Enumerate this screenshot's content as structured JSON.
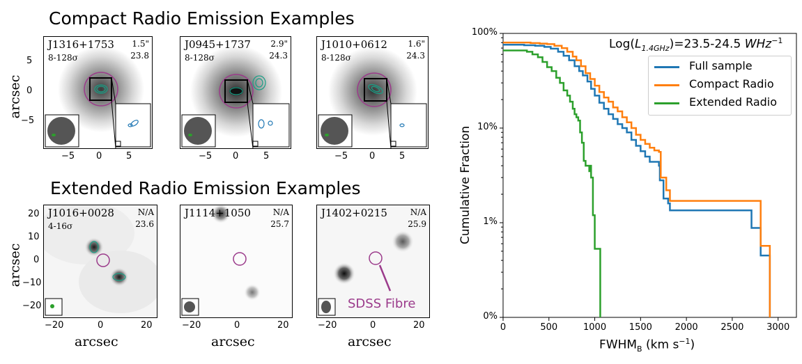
{
  "compact_section": {
    "title": "Compact Radio Emission Examples",
    "y_label": "arcsec",
    "panels": [
      {
        "name": "J1316+1753",
        "sigma": "8-128σ",
        "size": "1.5\"",
        "lum": "23.8"
      },
      {
        "name": "J0945+1737",
        "sigma": "8-128σ",
        "size": "2.9\"",
        "lum": "24.3"
      },
      {
        "name": "J1010+0612",
        "sigma": "8-128σ",
        "size": "1.6\"",
        "lum": "24.3"
      }
    ],
    "y_ticks": [
      "5",
      "0",
      "−5"
    ],
    "x_ticks": [
      "−5",
      "0",
      "5"
    ]
  },
  "extended_section": {
    "title": "Extended Radio Emission Examples",
    "y_label": "arcsec",
    "x_label": "arcsec",
    "panels": [
      {
        "name": "J1016+0028",
        "sigma": "4-16σ",
        "size": "N/A",
        "lum": "23.6"
      },
      {
        "name": "J1114+1050",
        "sigma": "",
        "size": "N/A",
        "lum": "25.7"
      },
      {
        "name": "J1402+0215",
        "sigma": "",
        "size": "N/A",
        "lum": "25.9"
      }
    ],
    "y_ticks": [
      "20",
      "10",
      "0",
      "−10",
      "−20"
    ],
    "x_ticks": [
      "−20",
      "0",
      "20"
    ],
    "fibre_label": "SDSS Fibre"
  },
  "colors": {
    "full": "#1f77b4",
    "compact": "#ff7f0e",
    "extended": "#2ca02c",
    "fibre": "#9b3b8b",
    "contour": "#1a9f86"
  },
  "chart_data": {
    "type": "line",
    "title": "Log(L1.4GHz)=23.5-24.5 WHz⁻¹",
    "title_parts": {
      "pre": "Log(",
      "L": "L",
      "sub": "1.4GHz",
      "mid": ")=23.5-24.5 ",
      "unit": "WHz",
      "sup": "−1"
    },
    "xlabel": "FWHM",
    "xlabel_sub": "B",
    "xlabel_unit": " (km s",
    "xlabel_sup": "−1",
    "xlabel_end": ")",
    "ylabel": "Cumulative Fraction",
    "xlim": [
      0,
      3200
    ],
    "ylim_log": [
      -3,
      0
    ],
    "x_ticks": [
      0,
      500,
      1000,
      1500,
      2000,
      2500,
      3000
    ],
    "y_ticks": [
      {
        "value": 1.0,
        "label": "100%"
      },
      {
        "value": 0.1,
        "label": "10%"
      },
      {
        "value": 0.01,
        "label": "1%"
      },
      {
        "value": 0.001,
        "label": "0%"
      }
    ],
    "legend_position": "upper-right",
    "series": [
      {
        "name": "Full sample",
        "color": "#1f77b4",
        "points": [
          [
            0,
            0.76
          ],
          [
            150,
            0.76
          ],
          [
            230,
            0.75
          ],
          [
            350,
            0.74
          ],
          [
            450,
            0.72
          ],
          [
            520,
            0.69
          ],
          [
            600,
            0.64
          ],
          [
            660,
            0.58
          ],
          [
            720,
            0.52
          ],
          [
            780,
            0.45
          ],
          [
            830,
            0.4
          ],
          [
            870,
            0.36
          ],
          [
            920,
            0.31
          ],
          [
            960,
            0.26
          ],
          [
            1000,
            0.22
          ],
          [
            1050,
            0.185
          ],
          [
            1100,
            0.16
          ],
          [
            1150,
            0.14
          ],
          [
            1200,
            0.125
          ],
          [
            1250,
            0.11
          ],
          [
            1300,
            0.1
          ],
          [
            1350,
            0.09
          ],
          [
            1400,
            0.075
          ],
          [
            1450,
            0.065
          ],
          [
            1500,
            0.057
          ],
          [
            1550,
            0.05
          ],
          [
            1600,
            0.044
          ],
          [
            1700,
            0.04
          ],
          [
            1710,
            0.028
          ],
          [
            1750,
            0.018
          ],
          [
            1800,
            0.016
          ],
          [
            1820,
            0.0135
          ],
          [
            2700,
            0.0135
          ],
          [
            2710,
            0.0088
          ],
          [
            2800,
            0.0088
          ],
          [
            2810,
            0.0045
          ],
          [
            2900,
            0.0045
          ],
          [
            2910,
            0.001
          ]
        ]
      },
      {
        "name": "Compact Radio",
        "color": "#ff7f0e",
        "points": [
          [
            0,
            0.8
          ],
          [
            200,
            0.8
          ],
          [
            300,
            0.79
          ],
          [
            400,
            0.78
          ],
          [
            480,
            0.77
          ],
          [
            560,
            0.74
          ],
          [
            640,
            0.7
          ],
          [
            700,
            0.64
          ],
          [
            760,
            0.57
          ],
          [
            800,
            0.52
          ],
          [
            850,
            0.45
          ],
          [
            900,
            0.38
          ],
          [
            950,
            0.33
          ],
          [
            1000,
            0.28
          ],
          [
            1050,
            0.24
          ],
          [
            1100,
            0.21
          ],
          [
            1150,
            0.19
          ],
          [
            1200,
            0.165
          ],
          [
            1250,
            0.15
          ],
          [
            1300,
            0.13
          ],
          [
            1350,
            0.115
          ],
          [
            1400,
            0.1
          ],
          [
            1450,
            0.085
          ],
          [
            1500,
            0.075
          ],
          [
            1550,
            0.068
          ],
          [
            1600,
            0.062
          ],
          [
            1650,
            0.058
          ],
          [
            1700,
            0.056
          ],
          [
            1720,
            0.03
          ],
          [
            1780,
            0.022
          ],
          [
            1800,
            0.022
          ],
          [
            1820,
            0.017
          ],
          [
            2800,
            0.017
          ],
          [
            2810,
            0.0057
          ],
          [
            2900,
            0.0057
          ],
          [
            2910,
            0.001
          ]
        ]
      },
      {
        "name": "Extended Radio",
        "color": "#2ca02c",
        "points": [
          [
            0,
            0.66
          ],
          [
            200,
            0.66
          ],
          [
            260,
            0.64
          ],
          [
            320,
            0.6
          ],
          [
            380,
            0.56
          ],
          [
            430,
            0.5
          ],
          [
            480,
            0.44
          ],
          [
            530,
            0.4
          ],
          [
            580,
            0.34
          ],
          [
            620,
            0.3
          ],
          [
            660,
            0.25
          ],
          [
            700,
            0.22
          ],
          [
            730,
            0.19
          ],
          [
            760,
            0.16
          ],
          [
            780,
            0.14
          ],
          [
            800,
            0.13
          ],
          [
            820,
            0.12
          ],
          [
            840,
            0.09
          ],
          [
            860,
            0.07
          ],
          [
            880,
            0.045
          ],
          [
            900,
            0.04
          ],
          [
            920,
            0.04
          ],
          [
            940,
            0.035
          ],
          [
            950,
            0.04
          ],
          [
            960,
            0.03
          ],
          [
            980,
            0.012
          ],
          [
            1000,
            0.0053
          ],
          [
            1040,
            0.0053
          ],
          [
            1060,
            0.001
          ]
        ]
      }
    ]
  }
}
